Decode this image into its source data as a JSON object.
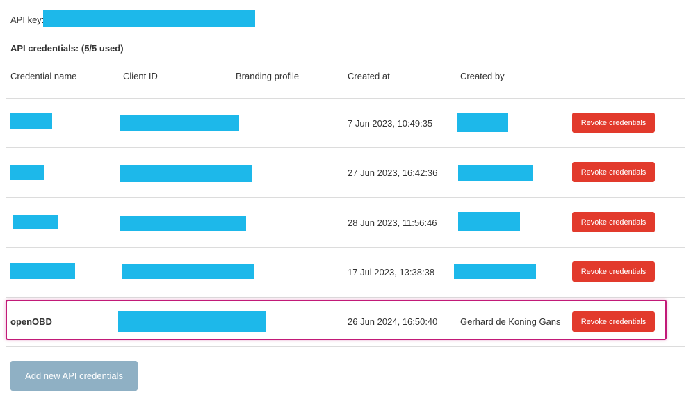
{
  "api_key": {
    "label": "API key:"
  },
  "credentials": {
    "heading": "API credentials: (5/5 used)",
    "columns": [
      "Credential name",
      "Client ID",
      "Branding profile",
      "Created at",
      "Created by"
    ],
    "rows": [
      {
        "name": "",
        "created_at": "7 Jun 2023, 10:49:35",
        "created_by": "",
        "action": "Revoke credentials"
      },
      {
        "name": "",
        "created_at": "27 Jun 2023, 16:42:36",
        "created_by": "",
        "action": "Revoke credentials"
      },
      {
        "name": "",
        "created_at": "28 Jun 2023, 11:56:46",
        "created_by": "",
        "action": "Revoke credentials"
      },
      {
        "name": "",
        "created_at": "17 Jul 2023, 13:38:38",
        "created_by": "",
        "action": "Revoke credentials"
      },
      {
        "name": "openOBD",
        "created_at": "26 Jun 2024, 16:50:40",
        "created_by": "Gerhard de Koning Gans",
        "action": "Revoke credentials"
      }
    ],
    "add_button": "Add new API credentials"
  },
  "colors": {
    "redaction": "#1db8ea",
    "revoke_button": "#e23a2c",
    "add_button_disabled": "#8fb0c4",
    "highlight_border": "#c21a78"
  }
}
